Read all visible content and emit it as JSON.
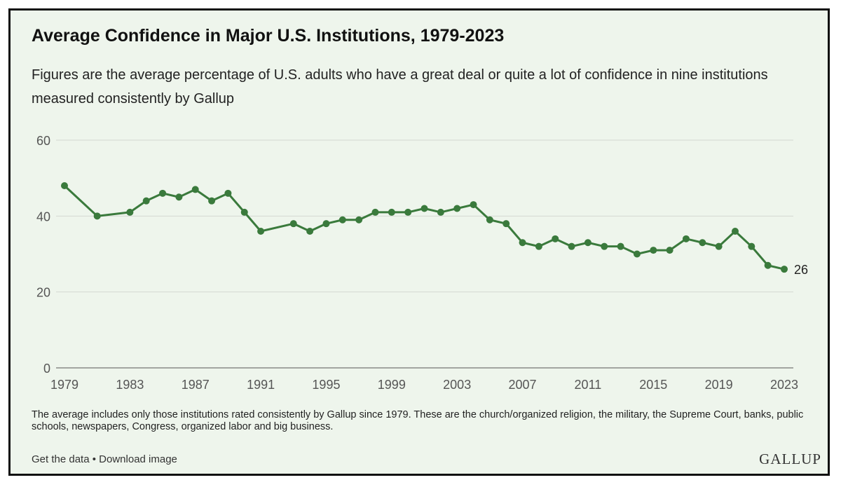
{
  "title": "Average Confidence in Major U.S. Institutions, 1979-2023",
  "subtitle": "Figures are the average percentage of U.S. adults who have a great deal or quite a lot of confidence in nine institutions measured consistently by Gallup",
  "note": "The average includes only those institutions rated consistently by Gallup since 1979. These are the church/organized religion, the military, the Supreme Court, banks, public schools, newspapers, Congress, organized labor and big business.",
  "links": {
    "get_data": "Get the data",
    "separator": "•",
    "download": "Download image"
  },
  "logo": "GALLUP",
  "colors": {
    "line": "#3a7a3c",
    "background": "#eef5ec",
    "grid": "#d4d8d2"
  },
  "chart_data": {
    "type": "line",
    "title": "Average Confidence in Major U.S. Institutions, 1979-2023",
    "xlabel": "",
    "ylabel": "",
    "ylim": [
      0,
      60
    ],
    "xlim": [
      1979,
      2023
    ],
    "yticks": [
      0,
      20,
      40,
      60
    ],
    "xticks": [
      1979,
      1983,
      1987,
      1991,
      1995,
      1999,
      2003,
      2007,
      2011,
      2015,
      2019,
      2023
    ],
    "grid": true,
    "end_label": "26",
    "series": [
      {
        "name": "Average confidence",
        "x": [
          1979,
          1981,
          1983,
          1984,
          1985,
          1986,
          1987,
          1988,
          1989,
          1990,
          1991,
          1993,
          1994,
          1995,
          1996,
          1997,
          1998,
          1999,
          2000,
          2001,
          2002,
          2003,
          2004,
          2005,
          2006,
          2007,
          2008,
          2009,
          2010,
          2011,
          2012,
          2013,
          2014,
          2015,
          2016,
          2017,
          2018,
          2019,
          2020,
          2021,
          2022,
          2023
        ],
        "values": [
          48,
          40,
          41,
          44,
          46,
          45,
          47,
          44,
          46,
          41,
          36,
          38,
          36,
          38,
          39,
          39,
          41,
          41,
          41,
          42,
          41,
          42,
          43,
          39,
          38,
          33,
          32,
          34,
          32,
          33,
          32,
          32,
          30,
          31,
          31,
          34,
          33,
          32,
          36,
          32,
          27,
          26
        ]
      }
    ]
  }
}
